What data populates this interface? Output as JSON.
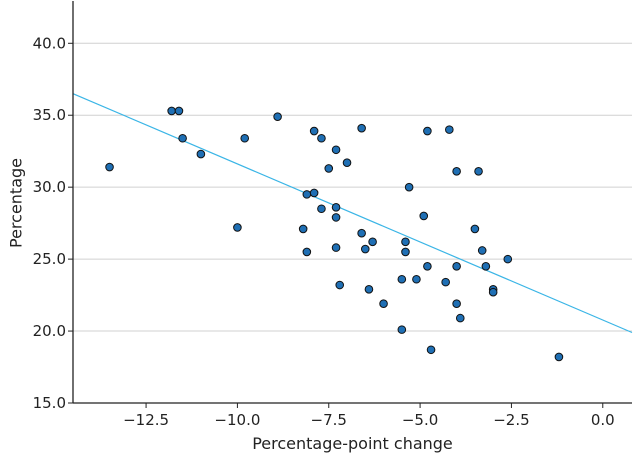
{
  "chart_data": {
    "type": "scatter",
    "xlabel": "Percentage-point change",
    "ylabel": "Percentage",
    "xlim": [
      -14.5,
      0.8
    ],
    "ylim": [
      15.0,
      42.8
    ],
    "x_ticks": [
      -12.5,
      -10.0,
      -7.5,
      -5.0,
      -2.5,
      0.0
    ],
    "x_tick_labels": [
      "−12.5",
      "−10.0",
      "−7.5",
      "−5.0",
      "−2.5",
      "0.0"
    ],
    "y_ticks": [
      15.0,
      20.0,
      25.0,
      30.0,
      35.0,
      40.0
    ],
    "y_tick_labels": [
      "15.0",
      "20.0",
      "25.0",
      "30.0",
      "35.0",
      "40.0"
    ],
    "grid": "horizontal",
    "series": [
      {
        "points": [
          [
            -13.5,
            31.4
          ],
          [
            -11.8,
            35.3
          ],
          [
            -11.6,
            35.3
          ],
          [
            -11.5,
            33.4
          ],
          [
            -11.0,
            32.3
          ],
          [
            -10.0,
            27.2
          ],
          [
            -9.8,
            33.4
          ],
          [
            -8.9,
            34.9
          ],
          [
            -8.2,
            27.1
          ],
          [
            -8.1,
            29.5
          ],
          [
            -8.1,
            25.5
          ],
          [
            -7.9,
            29.6
          ],
          [
            -7.9,
            33.9
          ],
          [
            -7.7,
            28.5
          ],
          [
            -7.7,
            33.4
          ],
          [
            -7.5,
            31.3
          ],
          [
            -7.3,
            32.6
          ],
          [
            -7.3,
            28.6
          ],
          [
            -7.3,
            27.9
          ],
          [
            -7.3,
            25.8
          ],
          [
            -7.2,
            23.2
          ],
          [
            -7.0,
            31.7
          ],
          [
            -6.6,
            34.1
          ],
          [
            -6.6,
            26.8
          ],
          [
            -6.5,
            25.7
          ],
          [
            -6.4,
            22.9
          ],
          [
            -6.3,
            26.2
          ],
          [
            -6.0,
            21.9
          ],
          [
            -5.5,
            20.1
          ],
          [
            -5.5,
            23.6
          ],
          [
            -5.4,
            26.2
          ],
          [
            -5.4,
            25.5
          ],
          [
            -5.3,
            30.0
          ],
          [
            -5.1,
            23.6
          ],
          [
            -4.9,
            28.0
          ],
          [
            -4.8,
            33.9
          ],
          [
            -4.8,
            24.5
          ],
          [
            -4.7,
            18.7
          ],
          [
            -4.3,
            23.4
          ],
          [
            -4.2,
            34.0
          ],
          [
            -4.0,
            31.1
          ],
          [
            -4.0,
            24.5
          ],
          [
            -4.0,
            21.9
          ],
          [
            -3.9,
            20.9
          ],
          [
            -3.5,
            27.1
          ],
          [
            -3.4,
            31.1
          ],
          [
            -3.3,
            25.6
          ],
          [
            -3.2,
            24.5
          ],
          [
            -3.0,
            22.9
          ],
          [
            -3.0,
            22.7
          ],
          [
            -2.6,
            25.0
          ],
          [
            -1.2,
            18.2
          ]
        ],
        "color": "#1f6fb4"
      }
    ],
    "trendline": {
      "x": [
        -14.5,
        0.8
      ],
      "y": [
        36.5,
        19.9
      ],
      "color": "#3ab5e6"
    },
    "legend": "none"
  }
}
